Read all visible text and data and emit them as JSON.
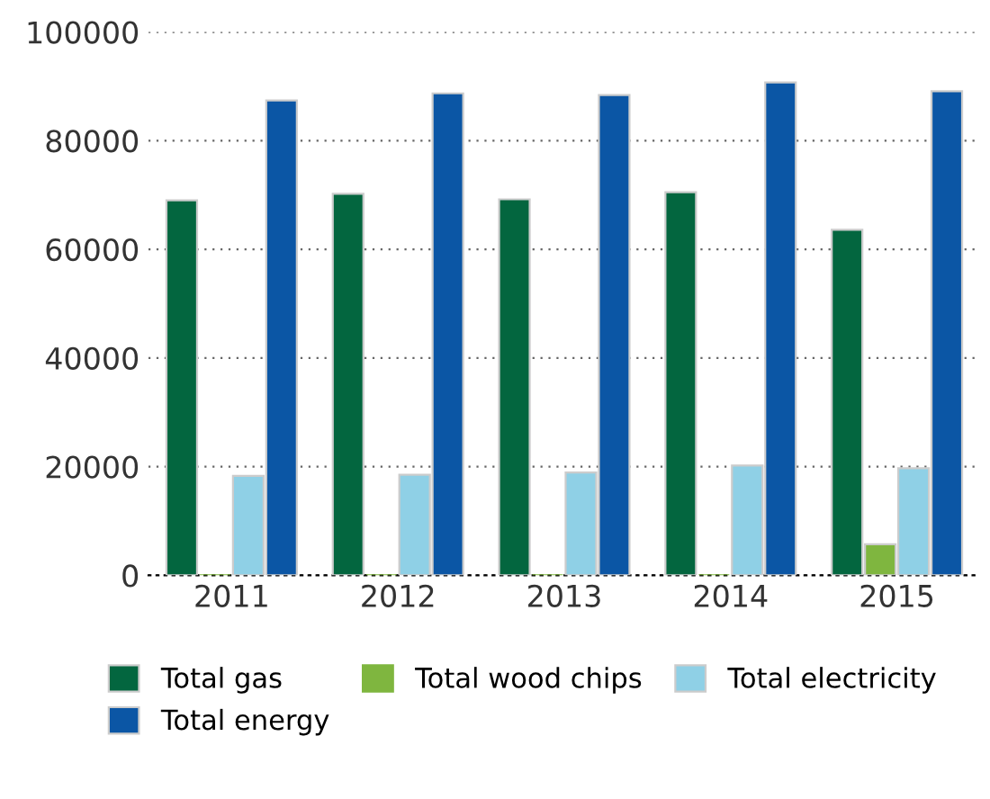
{
  "chart_data": {
    "type": "bar",
    "categories": [
      "2011",
      "2012",
      "2013",
      "2014",
      "2015"
    ],
    "series": [
      {
        "name": "Total gas",
        "color": "#03663f",
        "values": [
          69000,
          70200,
          69200,
          70500,
          63600
        ]
      },
      {
        "name": "Total wood chips",
        "color": "#7fb63f",
        "values": [
          0,
          0,
          0,
          0,
          5700
        ]
      },
      {
        "name": "Total electricity",
        "color": "#8fd0e6",
        "values": [
          18300,
          18500,
          18900,
          20200,
          19700
        ]
      },
      {
        "name": "Total energy",
        "color": "#0b56a5",
        "values": [
          87400,
          88700,
          88400,
          90700,
          89100
        ]
      }
    ],
    "ylim": [
      0,
      100000
    ],
    "yticks": [
      0,
      20000,
      40000,
      60000,
      80000,
      100000
    ],
    "grid": "y",
    "legend": "bottom"
  }
}
